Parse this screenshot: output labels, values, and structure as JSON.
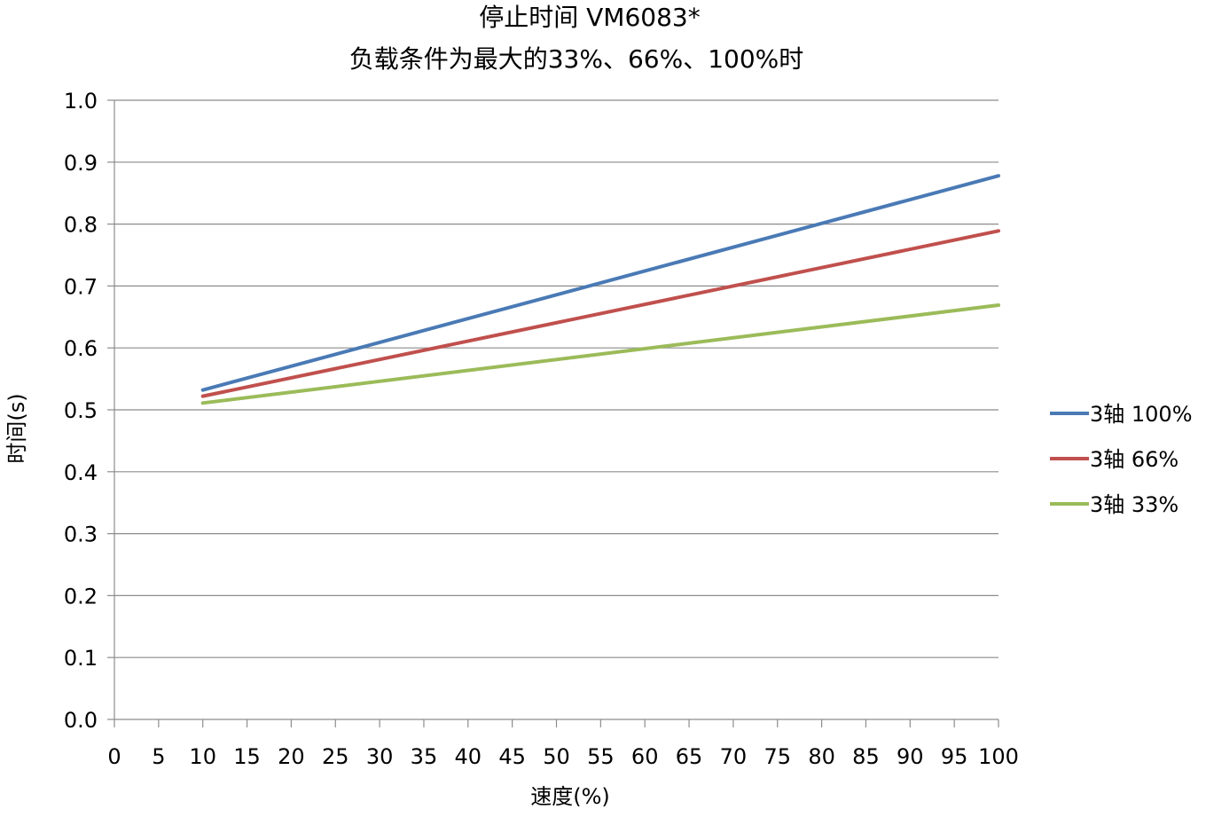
{
  "chart_data": {
    "type": "line",
    "title": "停止时间 VM6083*",
    "subtitle": "负载条件为最大的33%、66%、100%时",
    "xlabel": "速度(%)",
    "ylabel": "时间(s)",
    "xlim": [
      0,
      100
    ],
    "ylim": [
      0.0,
      1.0
    ],
    "x_ticks": [
      "0",
      "5",
      "10",
      "15",
      "20",
      "25",
      "30",
      "35",
      "40",
      "45",
      "50",
      "55",
      "60",
      "65",
      "70",
      "75",
      "80",
      "85",
      "90",
      "95",
      "100"
    ],
    "y_ticks": [
      "0.0",
      "0.1",
      "0.2",
      "0.3",
      "0.4",
      "0.5",
      "0.6",
      "0.7",
      "0.8",
      "0.9",
      "1.0"
    ],
    "grid": "horizontal",
    "legend_position": "right",
    "series": [
      {
        "name": "3轴  100%",
        "color": "#4a7ab5",
        "x": [
          10,
          100
        ],
        "y": [
          0.532,
          0.878
        ]
      },
      {
        "name": "3轴  66%",
        "color": "#c0504d",
        "x": [
          10,
          100
        ],
        "y": [
          0.522,
          0.789
        ]
      },
      {
        "name": "3轴  33%",
        "color": "#9bbb59",
        "x": [
          10,
          100
        ],
        "y": [
          0.511,
          0.669
        ]
      }
    ]
  }
}
